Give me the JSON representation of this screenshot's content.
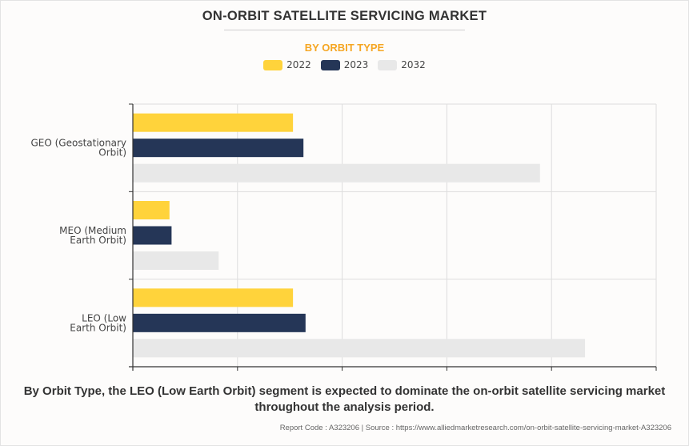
{
  "header": {
    "title": "ON-ORBIT SATELLITE SERVICING MARKET",
    "subtitle": "BY ORBIT TYPE"
  },
  "chart_data": {
    "type": "bar",
    "orientation": "horizontal",
    "title": "ON-ORBIT SATELLITE SERVICING MARKET",
    "subtitle": "BY ORBIT TYPE",
    "xlabel": "",
    "ylabel": "",
    "x_tick_labels": [],
    "value_units": "relative (gridline intervals; axis has no printed values)",
    "xlim": [
      0,
      5
    ],
    "grid": true,
    "legend_position": "top-center",
    "categories": [
      [
        "GEO (Geostationary",
        "Orbit)"
      ],
      [
        "MEO (Medium",
        "Earth Orbit)"
      ],
      [
        "LEO (Low",
        "Earth Orbit)"
      ]
    ],
    "series": [
      {
        "name": "2022",
        "color": "#ffd33b",
        "values": [
          1.53,
          0.35,
          1.53
        ]
      },
      {
        "name": "2023",
        "color": "#253657",
        "values": [
          1.63,
          0.37,
          1.65
        ]
      },
      {
        "name": "2032",
        "color": "#e8e8e8",
        "values": [
          3.89,
          0.82,
          4.32
        ]
      }
    ]
  },
  "caption": "By Orbit Type, the LEO (Low Earth Orbit) segment is expected to dominate the on-orbit satellite servicing market throughout the analysis period.",
  "footer": "Report Code : A323206  |  Source : https://www.alliedmarketresearch.com/on-orbit-satellite-servicing-market-A323206"
}
